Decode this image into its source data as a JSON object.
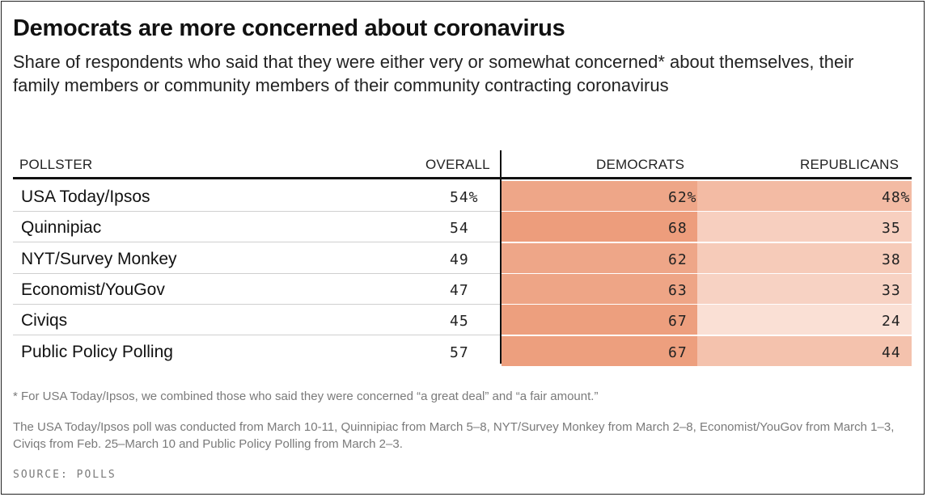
{
  "title": "Democrats are more concerned about coronavirus",
  "subtitle": "Share of respondents who said that they were either very or somewhat concerned* about themselves, their family members or community members of their community contracting coronavirus",
  "columns": {
    "pollster": "POLLSTER",
    "overall": "OVERALL",
    "democrats": "DEMOCRATS",
    "republicans": "REPUBLICANS"
  },
  "chart_data": {
    "type": "table",
    "title": "Democrats are more concerned about coronavirus",
    "columns": [
      "POLLSTER",
      "OVERALL",
      "DEMOCRATS",
      "REPUBLICANS"
    ],
    "rows": [
      {
        "pollster": "USA Today/Ipsos",
        "overall": "54%",
        "democrats": "62%",
        "republicans": "48%"
      },
      {
        "pollster": "Quinnipiac",
        "overall": "54",
        "democrats": "68",
        "republicans": "35"
      },
      {
        "pollster": "NYT/Survey Monkey",
        "overall": "49",
        "democrats": "62",
        "republicans": "38"
      },
      {
        "pollster": "Economist/YouGov",
        "overall": "47",
        "democrats": "63",
        "republicans": "33"
      },
      {
        "pollster": "Civiqs",
        "overall": "45",
        "democrats": "67",
        "republicans": "24"
      },
      {
        "pollster": "Public Policy Polling",
        "overall": "57",
        "democrats": "67",
        "republicans": "44"
      }
    ],
    "color_scale": {
      "low": "#fbe6dd",
      "high": "#ec9a78",
      "min_value": 20,
      "max_value": 70
    }
  },
  "footnote": "* For USA Today/Ipsos, we combined those who said they were concerned “a great deal” and “a fair amount.”",
  "note": "The USA Today/Ipsos poll was conducted from March 10-11, Quinnipiac from March 5–8, NYT/Survey Monkey from March 2–8, Economist/YouGov from March 1–3, Civiqs from Feb. 25–March 10 and Public Policy Polling from March 2–3.",
  "source": "SOURCE: POLLS"
}
